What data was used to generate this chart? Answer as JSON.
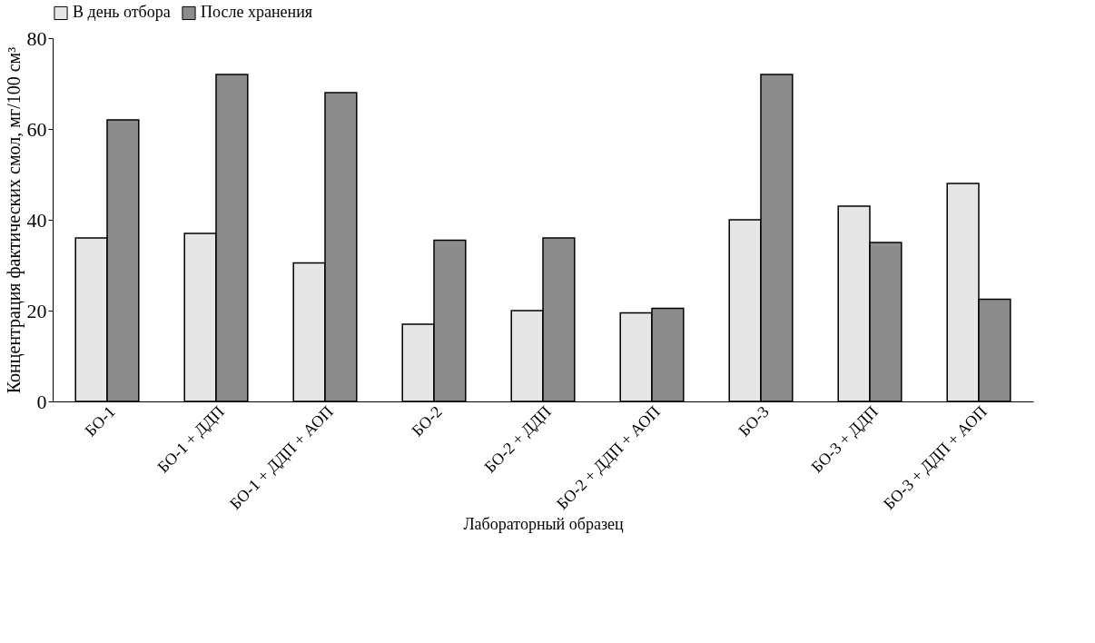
{
  "chart_data": {
    "type": "bar",
    "xlabel": "Лабораторный образец",
    "ylabel": "Концентрация фактических смол, мг/100 см³",
    "categories": [
      "БО-1",
      "БО-1 + ДДП",
      "БО-1 + ДДП + АОП",
      "БО-2",
      "БО-2 + ДДП",
      "БО-2 + ДДП + АОП",
      "БО-3",
      "БО-3 + ДДП",
      "БО-3 + ДДП + АОП"
    ],
    "series": [
      {
        "name": "В день отбора",
        "color": "#e6e6e6",
        "values": [
          36,
          37,
          30.5,
          17,
          20,
          19.5,
          40,
          43,
          48
        ]
      },
      {
        "name": "После хранения",
        "color": "#8c8c8c",
        "values": [
          62,
          72,
          68,
          35.5,
          36,
          20.5,
          72,
          35,
          22.5
        ]
      }
    ],
    "ylim": [
      0,
      80
    ],
    "yticks": [
      0,
      20,
      40,
      60,
      80
    ],
    "grid": false,
    "legend": "top"
  }
}
